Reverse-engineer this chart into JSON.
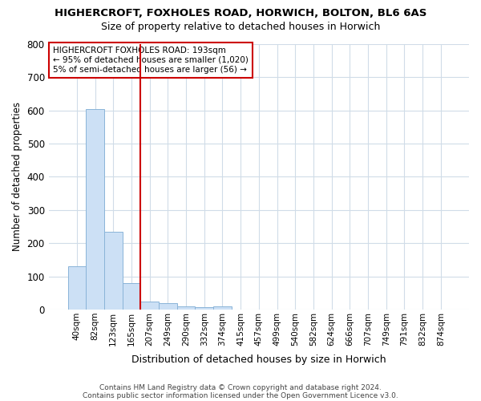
{
  "title1": "HIGHERCROFT, FOXHOLES ROAD, HORWICH, BOLTON, BL6 6AS",
  "title2": "Size of property relative to detached houses in Horwich",
  "xlabel": "Distribution of detached houses by size in Horwich",
  "ylabel": "Number of detached properties",
  "bar_labels": [
    "40sqm",
    "82sqm",
    "123sqm",
    "165sqm",
    "207sqm",
    "249sqm",
    "290sqm",
    "332sqm",
    "374sqm",
    "415sqm",
    "457sqm",
    "499sqm",
    "540sqm",
    "582sqm",
    "624sqm",
    "666sqm",
    "707sqm",
    "749sqm",
    "791sqm",
    "832sqm",
    "874sqm"
  ],
  "bar_values": [
    130,
    605,
    235,
    80,
    25,
    20,
    10,
    7,
    10,
    0,
    0,
    0,
    0,
    0,
    0,
    0,
    0,
    0,
    0,
    0,
    0
  ],
  "bar_color": "#cce0f5",
  "bar_edge_color": "#8ab4d8",
  "vline_color": "#cc0000",
  "vline_pos": 3.5,
  "annotation_text": "HIGHERCROFT FOXHOLES ROAD: 193sqm\n← 95% of detached houses are smaller (1,020)\n5% of semi-detached houses are larger (56) →",
  "annotation_box_facecolor": "#ffffff",
  "annotation_box_edgecolor": "#cc0000",
  "ylim": [
    0,
    800
  ],
  "yticks": [
    0,
    100,
    200,
    300,
    400,
    500,
    600,
    700,
    800
  ],
  "footer1": "Contains HM Land Registry data © Crown copyright and database right 2024.",
  "footer2": "Contains public sector information licensed under the Open Government Licence v3.0.",
  "background_color": "#ffffff",
  "grid_color": "#d0dce8"
}
